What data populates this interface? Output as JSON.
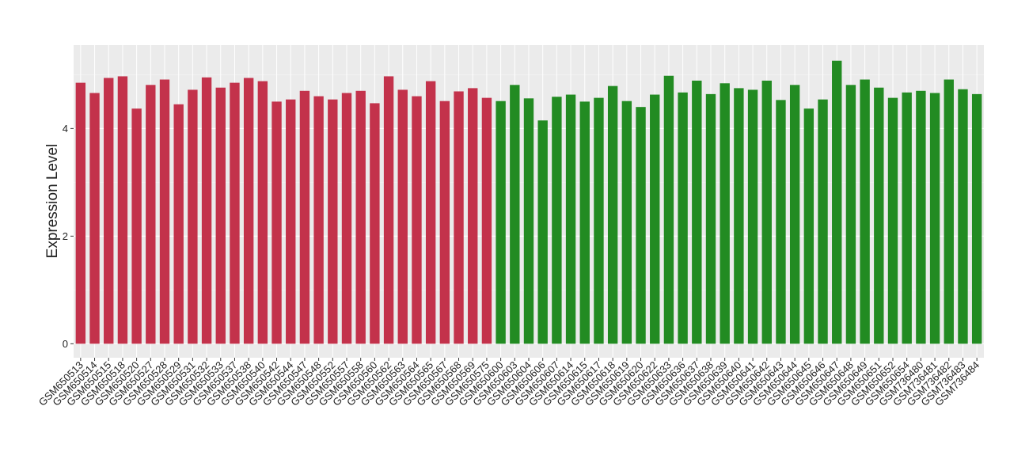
{
  "chart_data": {
    "type": "bar",
    "y_label": "Expression Level",
    "categories": [
      "GSM650513",
      "GSM650514",
      "GSM650515",
      "GSM650518",
      "GSM650520",
      "GSM650527",
      "GSM650528",
      "GSM650529",
      "GSM650531",
      "GSM650532",
      "GSM650533",
      "GSM650537",
      "GSM650538",
      "GSM650540",
      "GSM650542",
      "GSM650544",
      "GSM650547",
      "GSM650548",
      "GSM650552",
      "GSM650557",
      "GSM650558",
      "GSM650560",
      "GSM650562",
      "GSM650563",
      "GSM650564",
      "GSM650565",
      "GSM650567",
      "GSM650568",
      "GSM650569",
      "GSM650575",
      "GSM650600",
      "GSM650603",
      "GSM650604",
      "GSM650606",
      "GSM650607",
      "GSM650614",
      "GSM650615",
      "GSM650617",
      "GSM650618",
      "GSM650619",
      "GSM650620",
      "GSM650622",
      "GSM650633",
      "GSM650636",
      "GSM650637",
      "GSM650638",
      "GSM650639",
      "GSM650640",
      "GSM650641",
      "GSM650642",
      "GSM650643",
      "GSM650644",
      "GSM650645",
      "GSM650646",
      "GSM650647",
      "GSM650648",
      "GSM650649",
      "GSM650651",
      "GSM650652",
      "GSM650654",
      "GSM736480",
      "GSM736481",
      "GSM736482",
      "GSM736483",
      "GSM736484"
    ],
    "values": [
      4.85,
      4.66,
      4.94,
      4.97,
      4.37,
      4.81,
      4.91,
      4.45,
      4.72,
      4.95,
      4.76,
      4.85,
      4.94,
      4.88,
      4.5,
      4.54,
      4.7,
      4.6,
      4.54,
      4.66,
      4.7,
      4.47,
      4.97,
      4.72,
      4.6,
      4.88,
      4.51,
      4.69,
      4.75,
      4.57,
      4.51,
      4.81,
      4.56,
      4.15,
      4.59,
      4.63,
      4.5,
      4.57,
      4.79,
      4.51,
      4.4,
      4.63,
      4.98,
      4.67,
      4.89,
      4.64,
      4.84,
      4.75,
      4.72,
      4.89,
      4.53,
      4.81,
      4.37,
      4.54,
      5.26,
      4.81,
      4.91,
      4.76,
      4.57,
      4.67,
      4.7,
      4.66,
      4.91,
      4.73,
      4.64
    ],
    "colors": [
      "#c3324b",
      "#c3324b",
      "#c3324b",
      "#c3324b",
      "#c3324b",
      "#c3324b",
      "#c3324b",
      "#c3324b",
      "#c3324b",
      "#c3324b",
      "#c3324b",
      "#c3324b",
      "#c3324b",
      "#c3324b",
      "#c3324b",
      "#c3324b",
      "#c3324b",
      "#c3324b",
      "#c3324b",
      "#c3324b",
      "#c3324b",
      "#c3324b",
      "#c3324b",
      "#c3324b",
      "#c3324b",
      "#c3324b",
      "#c3324b",
      "#c3324b",
      "#c3324b",
      "#c3324b",
      "#228b22",
      "#228b22",
      "#228b22",
      "#228b22",
      "#228b22",
      "#228b22",
      "#228b22",
      "#228b22",
      "#228b22",
      "#228b22",
      "#228b22",
      "#228b22",
      "#228b22",
      "#228b22",
      "#228b22",
      "#228b22",
      "#228b22",
      "#228b22",
      "#228b22",
      "#228b22",
      "#228b22",
      "#228b22",
      "#228b22",
      "#228b22",
      "#228b22",
      "#228b22",
      "#228b22",
      "#228b22",
      "#228b22",
      "#228b22",
      "#228b22",
      "#228b22",
      "#228b22",
      "#228b22",
      "#228b22"
    ],
    "ylim": [
      -0.26,
      5.55
    ],
    "yticks": [
      0,
      2,
      4
    ],
    "minor_grid": [
      1,
      3,
      5
    ],
    "grid": true
  }
}
